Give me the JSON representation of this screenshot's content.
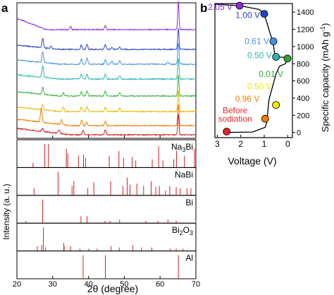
{
  "panels": {
    "a": {
      "label": "a"
    },
    "b": {
      "label": "b"
    }
  },
  "chart_data": [
    {
      "panel": "a",
      "type": "line",
      "xlabel": "2θ (degree)",
      "ylabel": "Intensity (a. u.)",
      "xlim": [
        20,
        70
      ],
      "xticks": [
        20,
        30,
        40,
        50,
        60,
        70
      ],
      "xtick_labels": [
        "20",
        "30",
        "40",
        "50",
        "60",
        "70"
      ],
      "series": [
        {
          "color": "#8a2be2",
          "peaks": [
            [
              27.2,
              0.0
            ],
            [
              35,
              0.2
            ],
            [
              44.7,
              0.25
            ],
            [
              65.1,
              1.0
            ]
          ]
        },
        {
          "color": "#2743c8",
          "peaks": [
            [
              27.2,
              0.6
            ],
            [
              29.5,
              0.15
            ],
            [
              38,
              0.3
            ],
            [
              39.6,
              0.35
            ],
            [
              44.7,
              0.3
            ],
            [
              46.5,
              0.15
            ],
            [
              48.7,
              0.15
            ],
            [
              65.1,
              1.0
            ]
          ]
        },
        {
          "color": "#4a90e2",
          "peaks": [
            [
              27.2,
              0.7
            ],
            [
              38,
              0.35
            ],
            [
              39.6,
              0.4
            ],
            [
              44.7,
              0.3
            ],
            [
              46.5,
              0.2
            ],
            [
              48.7,
              0.2
            ],
            [
              62.2,
              0.15
            ],
            [
              65.1,
              1.0
            ]
          ]
        },
        {
          "color": "#2ab7b0",
          "peaks": [
            [
              27.2,
              0.75
            ],
            [
              38,
              0.3
            ],
            [
              39.6,
              0.3
            ],
            [
              44.7,
              0.3
            ],
            [
              48.7,
              0.2
            ],
            [
              65.1,
              1.0
            ]
          ]
        },
        {
          "color": "#38b23a",
          "peaks": [
            [
              27.2,
              0.45
            ],
            [
              33,
              0.2
            ],
            [
              38,
              0.3
            ],
            [
              39.6,
              0.35
            ],
            [
              44.7,
              0.3
            ],
            [
              48.7,
              0.2
            ],
            [
              65.1,
              1.0
            ]
          ]
        },
        {
          "color": "#e6b800",
          "peaks": [
            [
              27.2,
              0.35
            ],
            [
              33,
              0.3
            ],
            [
              38,
              0.3
            ],
            [
              39.6,
              0.3
            ],
            [
              44.7,
              0.3
            ],
            [
              48.7,
              0.2
            ],
            [
              65.1,
              1.0
            ]
          ]
        },
        {
          "color": "#f07d00",
          "peaks": [
            [
              26.8,
              0.9
            ],
            [
              32.5,
              0.3
            ],
            [
              38.1,
              0.35
            ],
            [
              39.5,
              0.2
            ],
            [
              44.7,
              0.3
            ],
            [
              65.1,
              1.0
            ]
          ]
        },
        {
          "color": "#d81b1b",
          "peaks": [
            [
              27.2,
              0.2
            ],
            [
              31.8,
              0.25
            ],
            [
              38.5,
              0.3
            ],
            [
              44.7,
              0.35
            ],
            [
              65.1,
              1.0
            ]
          ]
        }
      ],
      "reference_patterns": [
        {
          "label_main": "Na",
          "label_sub1": "3",
          "label_mid": "Bi",
          "label_sub2": "",
          "rows": 2,
          "lines": [
            [
              24.5,
              0.2
            ],
            [
              27.8,
              1.0
            ],
            [
              28.8,
              1.0
            ],
            [
              33.8,
              0.8
            ],
            [
              34.2,
              0.6
            ],
            [
              37.2,
              0.5
            ],
            [
              38.6,
              0.55
            ],
            [
              39.2,
              0.4
            ],
            [
              45.8,
              0.5
            ],
            [
              48.5,
              0.7
            ],
            [
              49.8,
              0.4
            ],
            [
              52.2,
              0.45
            ],
            [
              53.2,
              0.3
            ],
            [
              57.8,
              0.35
            ],
            [
              59.6,
              0.9
            ],
            [
              60.8,
              0.3
            ],
            [
              63.8,
              0.35
            ],
            [
              64.6,
              0.7
            ],
            [
              66.8,
              0.5
            ],
            [
              69.6,
              0.8
            ]
          ]
        },
        {
          "label_main": "NaBi",
          "label_sub1": "",
          "label_mid": "",
          "label_sub2": "",
          "rows": 2,
          "lines": [
            [
              24.8,
              0.3
            ],
            [
              31.5,
              1.0
            ],
            [
              35.4,
              0.4
            ],
            [
              35.9,
              0.6
            ],
            [
              39.8,
              0.3
            ],
            [
              41.5,
              0.55
            ],
            [
              46.2,
              0.6
            ],
            [
              49.6,
              0.4
            ],
            [
              50.8,
              0.75
            ],
            [
              51.6,
              0.45
            ],
            [
              53.5,
              0.5
            ],
            [
              55.4,
              0.4
            ],
            [
              57.5,
              0.6
            ],
            [
              58.8,
              0.35
            ],
            [
              59.8,
              0.4
            ],
            [
              61.5,
              0.2
            ],
            [
              62.7,
              0.4
            ],
            [
              64.5,
              0.35
            ],
            [
              65.6,
              0.3
            ],
            [
              67.5,
              0.3
            ],
            [
              68.6,
              0.3
            ]
          ]
        },
        {
          "label_main": "Bi",
          "label_sub1": "",
          "label_mid": "",
          "label_sub2": "",
          "rows": 2,
          "lines": [
            [
              22.5,
              0.1
            ],
            [
              27.2,
              1.0
            ],
            [
              37.9,
              0.3
            ],
            [
              39.6,
              0.3
            ],
            [
              44.6,
              0.1
            ],
            [
              46.0,
              0.1
            ],
            [
              48.7,
              0.15
            ],
            [
              56.0,
              0.1
            ],
            [
              59.4,
              0.1
            ],
            [
              62.2,
              0.15
            ],
            [
              64.5,
              0.1
            ],
            [
              70.0,
              0.1
            ]
          ]
        },
        {
          "label_main": "Bi",
          "label_sub1": "2",
          "label_mid": "O",
          "label_sub2": "3",
          "rows": 2,
          "lines": [
            [
              25.7,
              0.2
            ],
            [
              26.9,
              0.25
            ],
            [
              27.4,
              1.0
            ],
            [
              28.0,
              0.15
            ],
            [
              33.1,
              0.35
            ],
            [
              33.2,
              0.2
            ],
            [
              35.0,
              0.2
            ],
            [
              37.6,
              0.1
            ],
            [
              40.1,
              0.1
            ],
            [
              42.4,
              0.1
            ],
            [
              46.3,
              0.2
            ],
            [
              48.6,
              0.15
            ],
            [
              52.4,
              0.25
            ],
            [
              54.8,
              0.15
            ],
            [
              57.7,
              0.15
            ],
            [
              62.8,
              0.1
            ],
            [
              64.5,
              0.1
            ],
            [
              66.4,
              0.1
            ]
          ]
        },
        {
          "label_main": "Al",
          "label_sub1": "",
          "label_mid": "",
          "label_sub2": "",
          "rows": 2,
          "lines": [
            [
              38.5,
              1.0
            ],
            [
              44.7,
              1.0
            ],
            [
              65.1,
              1.0
            ]
          ]
        }
      ]
    },
    {
      "panel": "b",
      "type": "scatter",
      "xlabel": "Voltage (V)",
      "ylabel_main": "Specific capacity (mAh g",
      "ylabel_sup": "-1",
      "ylabel_end": ")",
      "xlim": [
        3.1,
        -0.2
      ],
      "ylim": [
        -60,
        1500
      ],
      "xticks": [
        3,
        2,
        1,
        0
      ],
      "xtick_labels": [
        "3",
        "2",
        "1",
        "0"
      ],
      "yticks": [
        0,
        200,
        400,
        600,
        800,
        1000,
        1200,
        1400
      ],
      "ytick_labels": [
        "0",
        "200",
        "400",
        "600",
        "800",
        "1000",
        "1200",
        "1400"
      ],
      "curve": [
        [
          2.75,
          0
        ],
        [
          1.5,
          5
        ],
        [
          0.96,
          60
        ],
        [
          0.9,
          110
        ],
        [
          0.88,
          160
        ],
        [
          0.84,
          260
        ],
        [
          0.8,
          380
        ],
        [
          0.7,
          480
        ],
        [
          0.6,
          580
        ],
        [
          0.5,
          680
        ],
        [
          0.35,
          770
        ],
        [
          0.1,
          800
        ],
        [
          0.02,
          855
        ],
        [
          -0.02,
          870
        ],
        [
          0.5,
          880
        ],
        [
          0.55,
          900
        ],
        [
          0.62,
          1040
        ],
        [
          0.78,
          1180
        ],
        [
          0.9,
          1290
        ],
        [
          1.0,
          1370
        ],
        [
          1.2,
          1430
        ],
        [
          2.05,
          1475
        ],
        [
          2.7,
          1485
        ],
        [
          3.1,
          1490
        ]
      ],
      "points": [
        {
          "v": 2.6,
          "c": 10,
          "label": "Before",
          "label2": "sodiation",
          "color": "#e8252a"
        },
        {
          "v": 0.96,
          "c": 160,
          "label": "0.96 V",
          "label2": "",
          "color": "#f07d00"
        },
        {
          "v": 0.5,
          "c": 320,
          "label": "0.50 V",
          "label2": "",
          "color": "#f2e600"
        },
        {
          "v": 0.01,
          "c": 860,
          "label": "0.01 V",
          "label2": "",
          "color": "#2aa52f"
        },
        {
          "v": 0.5,
          "c": 880,
          "label": "0.50 V",
          "label2": "",
          "color": "#2ab7b0"
        },
        {
          "v": 0.61,
          "c": 1060,
          "label": "0.61 V",
          "label2": "",
          "color": "#4a90e2"
        },
        {
          "v": 1.0,
          "c": 1380,
          "label": "1.00 V",
          "label2": "",
          "color": "#2743c8"
        },
        {
          "v": 2.05,
          "c": 1475,
          "label": "2.05 V",
          "label2": "",
          "color": "#8a2be2"
        }
      ]
    }
  ]
}
